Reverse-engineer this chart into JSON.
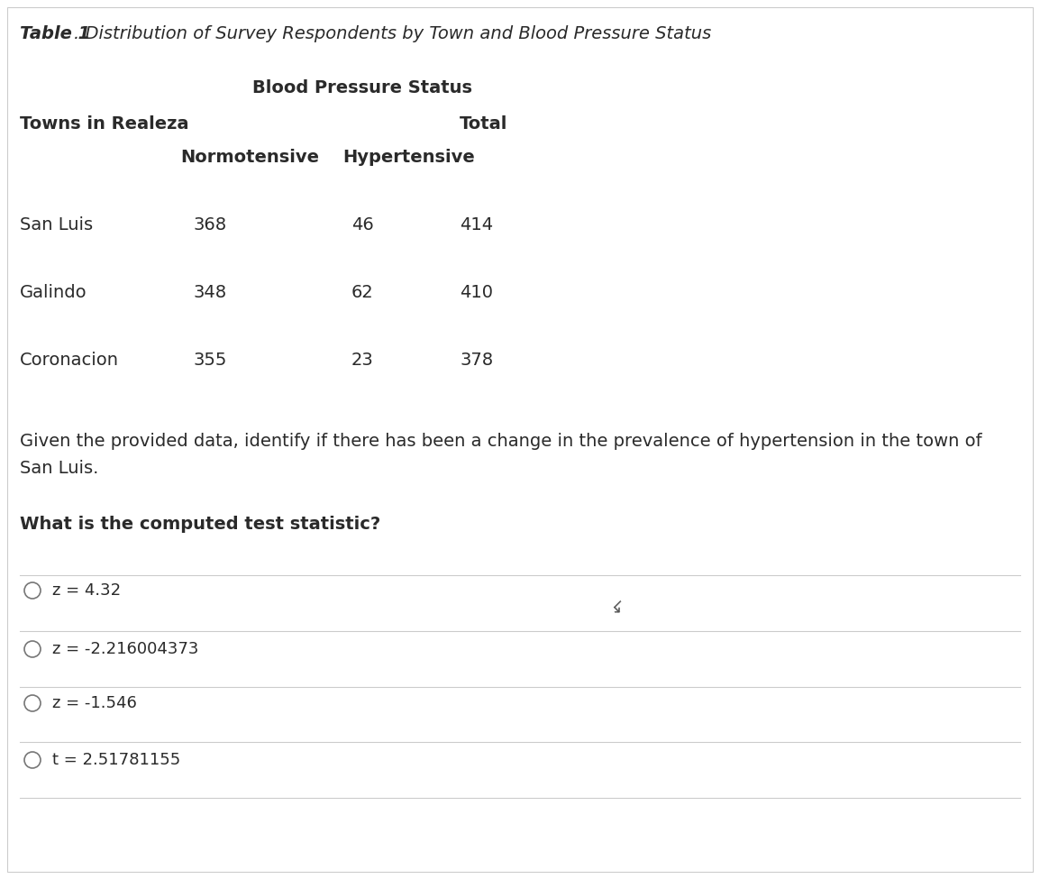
{
  "title_bold": "Table 1",
  "title_rest": ". Distribution of Survey Respondents by Town and Blood Pressure Status",
  "header_bp": "Blood Pressure Status",
  "header_towns": "Towns in Realeza",
  "header_total": "Total",
  "header_normo": "Normotensive",
  "header_hyper": "Hypertensive",
  "rows": [
    {
      "town": "San Luis",
      "normo": "368",
      "hyper": "46",
      "total": "414"
    },
    {
      "town": "Galindo",
      "normo": "348",
      "hyper": "62",
      "total": "410"
    },
    {
      "town": "Coronacion",
      "normo": "355",
      "hyper": "23",
      "total": "378"
    }
  ],
  "paragraph_line1": "Given the provided data, identify if there has been a change in the prevalence of hypertension in the town of",
  "paragraph_line2": "San Luis.",
  "question": "What is the computed test statistic?",
  "options": [
    "z = 4.32",
    "z = -2.216004373",
    "z = -1.546",
    "t = 2.51781155"
  ],
  "text_color": "#2a2a2a",
  "line_color": "#cccccc",
  "circle_color": "#777777",
  "font_size_title": 14,
  "font_size_body": 14,
  "font_size_options": 13,
  "font_size_header": 14
}
